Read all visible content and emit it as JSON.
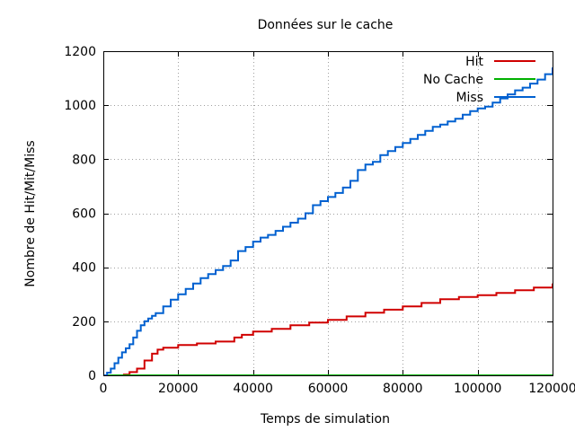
{
  "chart_data": {
    "type": "line",
    "title": "Données sur le cache",
    "xlabel": "Temps de simulation",
    "ylabel": "Nombre de Hit/Mit/Miss",
    "xlim": [
      0,
      120000
    ],
    "ylim": [
      0,
      1200
    ],
    "xticks": [
      0,
      20000,
      40000,
      60000,
      80000,
      100000,
      120000
    ],
    "yticks": [
      0,
      200,
      400,
      600,
      800,
      1000,
      1200
    ],
    "grid": true,
    "legend_position": "top-right",
    "series": [
      {
        "name": "Hit",
        "color": "#d00000",
        "x": [
          0,
          3000,
          5500,
          7000,
          9000,
          11000,
          13000,
          14500,
          16000,
          20000,
          25000,
          30000,
          35000,
          37000,
          40000,
          45000,
          50000,
          55000,
          60000,
          65000,
          70000,
          75000,
          80000,
          85000,
          90000,
          95000,
          100000,
          105000,
          110000,
          115000,
          120000
        ],
        "y": [
          0,
          0,
          3,
          12,
          25,
          55,
          80,
          95,
          102,
          112,
          118,
          125,
          140,
          150,
          162,
          172,
          185,
          195,
          205,
          218,
          232,
          243,
          255,
          268,
          282,
          290,
          297,
          305,
          315,
          325,
          340
        ]
      },
      {
        "name": "No Cache",
        "color": "#00b000",
        "x": [
          0,
          120000
        ],
        "y": [
          0,
          0
        ]
      },
      {
        "name": "Miss",
        "color": "#0060d0",
        "x": [
          0,
          1000,
          2000,
          3000,
          4000,
          5000,
          6000,
          7000,
          8000,
          9000,
          10000,
          11000,
          12000,
          13000,
          14000,
          16000,
          18000,
          20000,
          22000,
          24000,
          26000,
          28000,
          30000,
          32000,
          34000,
          36000,
          38000,
          40000,
          42000,
          44000,
          46000,
          48000,
          50000,
          52000,
          54000,
          56000,
          58000,
          60000,
          62000,
          64000,
          66000,
          68000,
          70000,
          72000,
          74000,
          76000,
          78000,
          80000,
          82000,
          84000,
          86000,
          88000,
          90000,
          92000,
          94000,
          96000,
          98000,
          100000,
          102000,
          104000,
          106000,
          108000,
          110000,
          112000,
          114000,
          116000,
          118000,
          120000
        ],
        "y": [
          0,
          10,
          25,
          45,
          65,
          85,
          100,
          115,
          140,
          165,
          185,
          200,
          210,
          220,
          230,
          255,
          280,
          300,
          320,
          340,
          360,
          375,
          390,
          405,
          425,
          460,
          475,
          495,
          510,
          520,
          535,
          550,
          565,
          580,
          600,
          630,
          645,
          660,
          675,
          695,
          720,
          760,
          780,
          790,
          815,
          830,
          845,
          860,
          875,
          890,
          905,
          920,
          928,
          940,
          950,
          965,
          978,
          988,
          995,
          1010,
          1025,
          1040,
          1055,
          1065,
          1080,
          1095,
          1115,
          1140
        ]
      }
    ]
  }
}
